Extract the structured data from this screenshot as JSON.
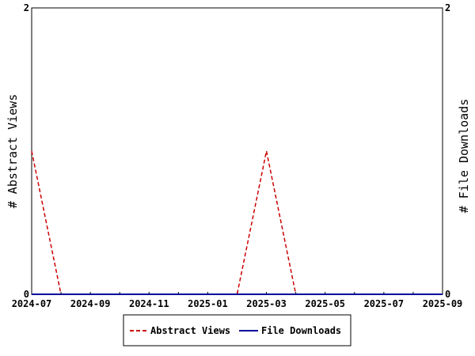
{
  "chart_data": {
    "type": "line",
    "title": "",
    "xlabel": "",
    "ylabel_left": "# Abstract Views",
    "ylabel_right": "# File Downloads",
    "x_ticks": [
      "2024-07",
      "2024-09",
      "2024-11",
      "2025-01",
      "2025-03",
      "2025-05",
      "2025-07",
      "2025-09"
    ],
    "x_months": [
      "2024-07",
      "2024-08",
      "2024-09",
      "2024-10",
      "2024-11",
      "2024-12",
      "2025-01",
      "2025-02",
      "2025-03",
      "2025-04",
      "2025-05",
      "2025-06",
      "2025-07",
      "2025-08",
      "2025-09"
    ],
    "ylim_left": [
      0,
      2
    ],
    "ylim_right": [
      0,
      2
    ],
    "y_ticks_left": [
      "0",
      "2"
    ],
    "y_ticks_right": [
      "0",
      "2"
    ],
    "grid": false,
    "legend_position": "bottom-center",
    "series": [
      {
        "name": "Abstract Views",
        "axis": "left",
        "color": "#cc0000",
        "dash": "dashed",
        "values": [
          1,
          0,
          0,
          0,
          0,
          0,
          0,
          0,
          1,
          0,
          0,
          0,
          0,
          0,
          0
        ]
      },
      {
        "name": "File Downloads",
        "axis": "right",
        "color": "#000099",
        "dash": "solid",
        "values": [
          0,
          0,
          0,
          0,
          0,
          0,
          0,
          0,
          0,
          0,
          0,
          0,
          0,
          0,
          0
        ]
      }
    ]
  }
}
